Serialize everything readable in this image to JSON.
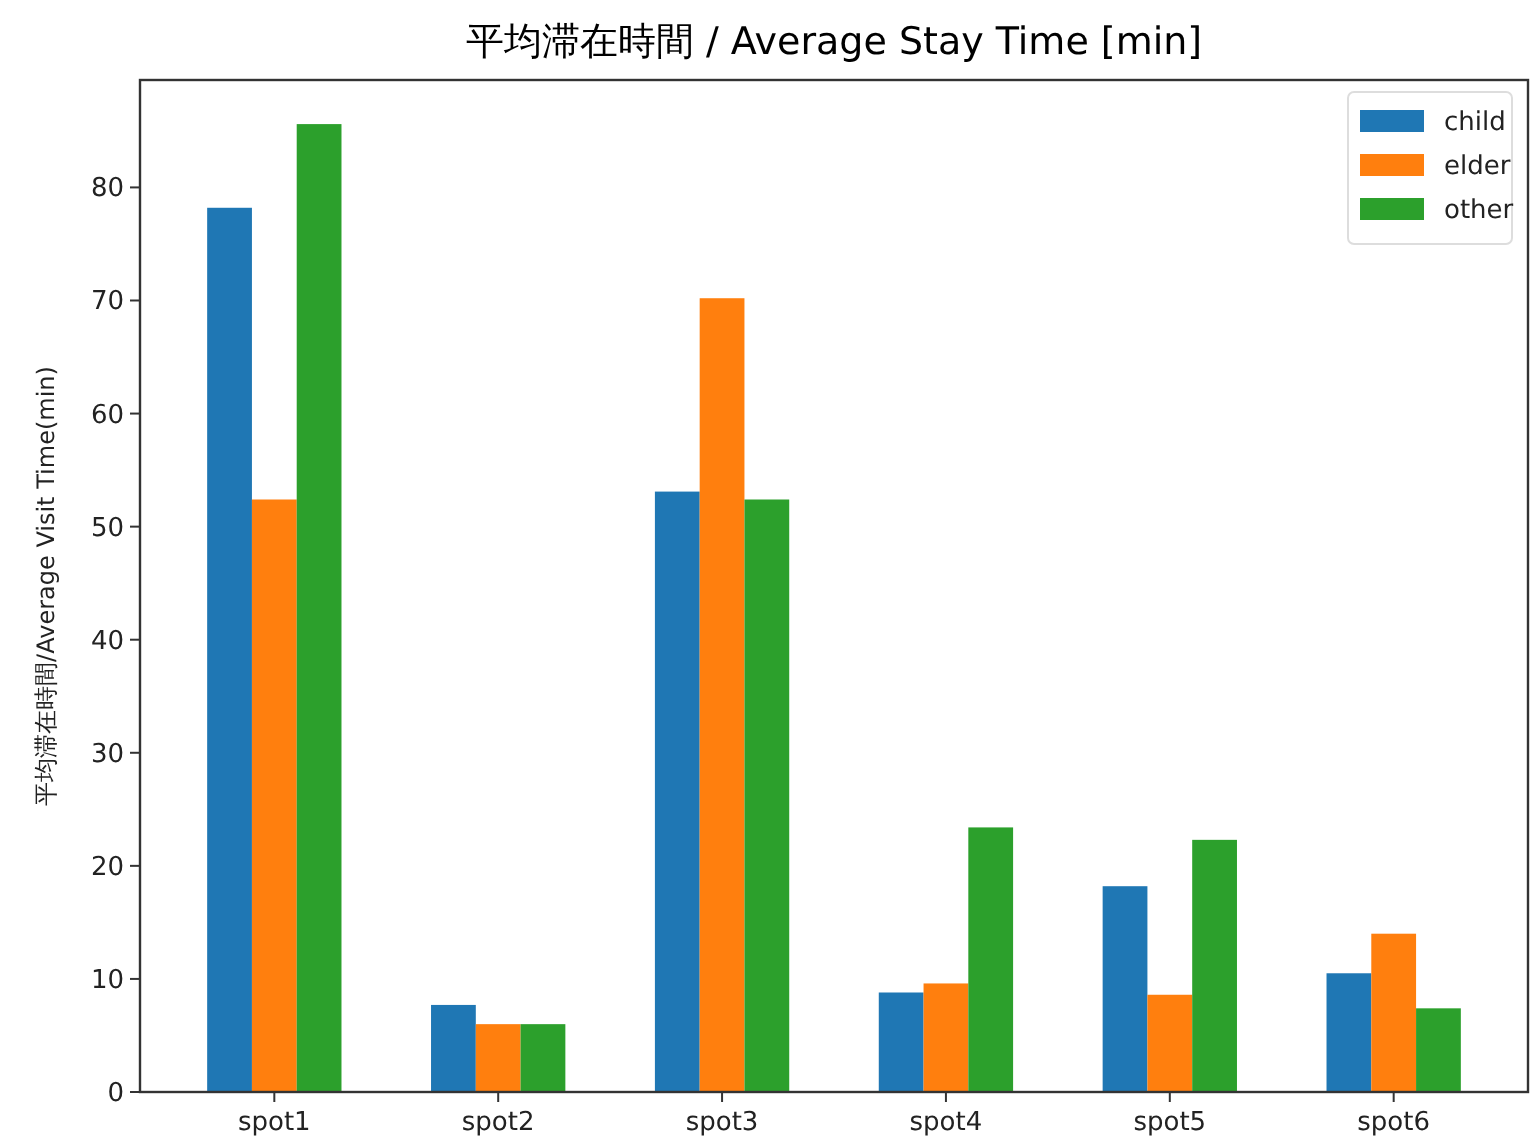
{
  "chart_data": {
    "type": "bar",
    "title": "平均滞在時間 / Average Stay Time [min]",
    "ylabel": "平均滞在時間/Average Visit Time(min)",
    "categories": [
      "spot1",
      "spot2",
      "spot3",
      "spot4",
      "spot5",
      "spot6"
    ],
    "series": [
      {
        "name": "child",
        "color": "#1f77b4",
        "values": [
          78.2,
          7.7,
          53.1,
          8.8,
          18.2,
          10.5
        ]
      },
      {
        "name": "elder",
        "color": "#ff7f0e",
        "values": [
          52.4,
          6.0,
          70.2,
          9.6,
          8.6,
          14.0
        ]
      },
      {
        "name": "other",
        "color": "#2ca02c",
        "values": [
          85.6,
          6.0,
          52.4,
          23.4,
          22.3,
          7.4
        ]
      }
    ],
    "ylim": [
      0,
      89.5
    ],
    "yticks": [
      0,
      10,
      20,
      30,
      40,
      50,
      60,
      70,
      80
    ],
    "legend": "top right",
    "grid": false
  }
}
